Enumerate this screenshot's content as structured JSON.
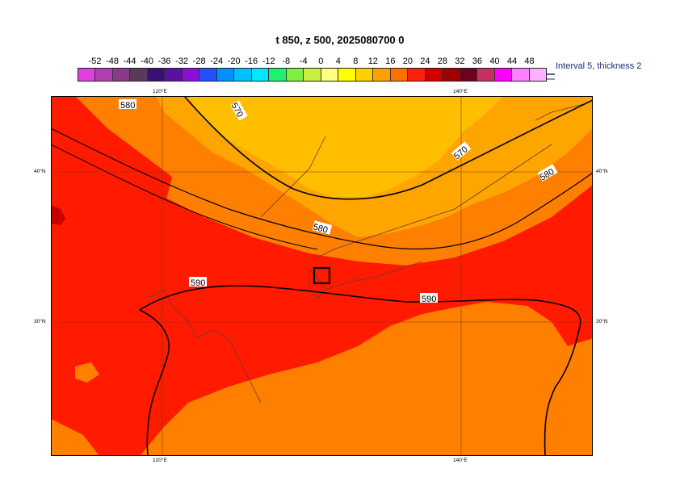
{
  "title": "t 850, z 500, 2025080700 0",
  "colorbar": {
    "labels": [
      "-52",
      "-48",
      "-44",
      "-40",
      "-36",
      "-32",
      "-28",
      "-24",
      "-20",
      "-16",
      "-12",
      "-8",
      "-4",
      "0",
      "4",
      "8",
      "12",
      "16",
      "20",
      "24",
      "28",
      "32",
      "36",
      "40",
      "44",
      "48"
    ],
    "colors": [
      "#e040e0",
      "#b040b0",
      "#8a3a8a",
      "#5a3a5a",
      "#3a1070",
      "#5a10a0",
      "#8a10d8",
      "#2050ff",
      "#0090ff",
      "#00c0ff",
      "#00e8ff",
      "#20f070",
      "#80f040",
      "#c8f040",
      "#ffff80",
      "#ffff00",
      "#ffd000",
      "#ffa000",
      "#ff7000",
      "#ff2010",
      "#d00000",
      "#a00000",
      "#700020",
      "#c83060",
      "#ff00ff",
      "#ff80ff",
      "#ffb0ff"
    ]
  },
  "interval_note": "Interval 5, thickness 2",
  "fill_colors": {
    "orange_16_20": "#ff7f00",
    "light_orange_12_16": "#ffa500",
    "amber_8_12": "#ffbf00",
    "red_20_24": "#ff1a00",
    "dark_red_24_28": "#c40000"
  },
  "map": {
    "lon_labels": [
      "120°E",
      "140°E"
    ],
    "lat_labels": [
      "40°N",
      "30°N"
    ],
    "contours": {
      "c570": "570",
      "c580": "580",
      "c590": "590"
    },
    "marker": "station-box"
  }
}
